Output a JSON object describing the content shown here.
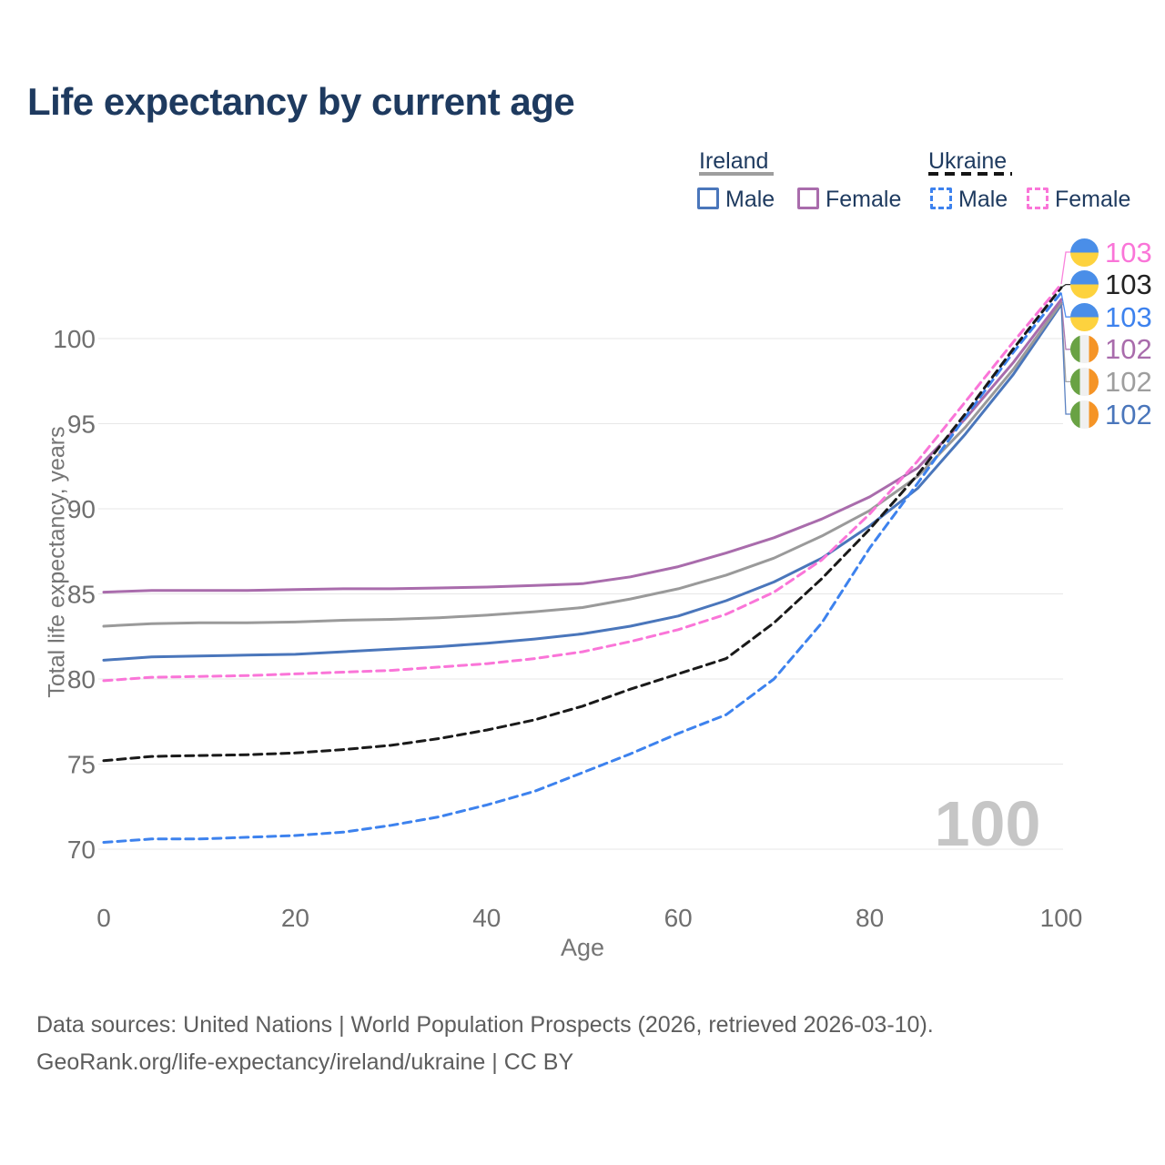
{
  "title": "Life expectancy by current age",
  "legend": {
    "groups": [
      {
        "label": "Ireland",
        "line_style": "solid",
        "line_color": "#9e9e9e",
        "items": [
          {
            "label": "Male",
            "color": "#4a76bb",
            "style": "solid"
          },
          {
            "label": "Female",
            "color": "#a96cac",
            "style": "solid"
          }
        ]
      },
      {
        "label": "Ukraine",
        "line_style": "dashed",
        "line_color": "#1a1a1a",
        "items": [
          {
            "label": "Male",
            "color": "#3d82ee",
            "style": "dashed"
          },
          {
            "label": "Female",
            "color": "#fa75d8",
            "style": "dashed"
          }
        ]
      }
    ]
  },
  "chart_data": {
    "type": "line",
    "title": "Life expectancy by current age",
    "xlabel": "Age",
    "ylabel": "Total life expectancy, years",
    "x_ticks": [
      0,
      20,
      40,
      60,
      80,
      100
    ],
    "y_ticks": [
      70,
      75,
      80,
      85,
      90,
      95,
      100
    ],
    "xlim": [
      0,
      100
    ],
    "ylim": [
      69,
      104
    ],
    "grid": "horizontal",
    "legend_position": "top-right",
    "watermark": "100",
    "x": [
      0,
      5,
      10,
      15,
      20,
      25,
      30,
      35,
      40,
      45,
      50,
      55,
      60,
      65,
      70,
      75,
      80,
      85,
      90,
      95,
      100
    ],
    "series": [
      {
        "id": "ireland-male",
        "name": "Ireland Male",
        "country": "Ireland",
        "sex": "Male",
        "line_style": "solid",
        "color": "#4a76bb",
        "end_label": "102",
        "end_label_color": "#4a76bb",
        "flag_icon": "ireland-flag-icon",
        "values": [
          81.1,
          81.3,
          81.35,
          81.4,
          81.45,
          81.6,
          81.75,
          81.9,
          82.1,
          82.35,
          82.65,
          83.1,
          83.7,
          84.6,
          85.7,
          87.1,
          89.0,
          91.2,
          94.4,
          97.9,
          102.0
        ]
      },
      {
        "id": "ireland-all",
        "name": "Ireland",
        "country": "Ireland",
        "sex": "All",
        "line_style": "solid",
        "color": "#9a9a9a",
        "end_label": "102",
        "end_label_color": "#9e9e9e",
        "flag_icon": "ireland-flag-icon",
        "values": [
          83.1,
          83.25,
          83.3,
          83.3,
          83.35,
          83.45,
          83.5,
          83.6,
          83.75,
          83.95,
          84.2,
          84.7,
          85.3,
          86.1,
          87.1,
          88.4,
          89.9,
          91.9,
          94.8,
          98.2,
          102.1
        ]
      },
      {
        "id": "ireland-female",
        "name": "Ireland Female",
        "country": "Ireland",
        "sex": "Female",
        "line_style": "solid",
        "color": "#a96cac",
        "end_label": "102",
        "end_label_color": "#a96cac",
        "flag_icon": "ireland-flag-icon",
        "values": [
          85.1,
          85.2,
          85.2,
          85.2,
          85.25,
          85.3,
          85.3,
          85.35,
          85.4,
          85.5,
          85.6,
          86.0,
          86.6,
          87.4,
          88.3,
          89.4,
          90.7,
          92.4,
          95.3,
          98.6,
          102.3
        ]
      },
      {
        "id": "ukraine-male",
        "name": "Ukraine Male",
        "country": "Ukraine",
        "sex": "Male",
        "line_style": "dashed",
        "color": "#3d82ee",
        "end_label": "103",
        "end_label_color": "#3d82ee",
        "flag_icon": "ukraine-flag-icon",
        "values": [
          70.4,
          70.6,
          70.6,
          70.7,
          70.8,
          71.0,
          71.4,
          71.9,
          72.6,
          73.4,
          74.5,
          75.6,
          76.8,
          77.9,
          80.0,
          83.3,
          87.7,
          91.5,
          95.4,
          99.2,
          102.7
        ]
      },
      {
        "id": "ukraine-all",
        "name": "Ukraine",
        "country": "Ukraine",
        "sex": "All",
        "line_style": "dashed",
        "color": "#1a1a1a",
        "end_label": "103",
        "end_label_color": "#222222",
        "flag_icon": "ukraine-flag-icon",
        "values": [
          75.2,
          75.45,
          75.5,
          75.55,
          75.65,
          75.85,
          76.1,
          76.5,
          77.0,
          77.6,
          78.4,
          79.4,
          80.3,
          81.2,
          83.3,
          85.9,
          88.8,
          92.0,
          95.6,
          99.4,
          103.0
        ]
      },
      {
        "id": "ukraine-female",
        "name": "Ukraine Female",
        "country": "Ukraine",
        "sex": "Female",
        "line_style": "dashed",
        "color": "#fa75d8",
        "end_label": "103",
        "end_label_color": "#fa75d8",
        "flag_icon": "ukraine-flag-icon",
        "values": [
          79.9,
          80.1,
          80.15,
          80.2,
          80.3,
          80.4,
          80.5,
          80.7,
          80.9,
          81.2,
          81.6,
          82.2,
          82.9,
          83.8,
          85.1,
          87.0,
          89.7,
          92.8,
          96.3,
          99.8,
          103.2
        ]
      }
    ]
  },
  "footer": {
    "line1": "Data sources: United Nations | World Population Prospects (2026, retrieved 2026-03-10).",
    "line2": "GeoRank.org/life-expectancy/ireland/ukraine | CC BY"
  }
}
